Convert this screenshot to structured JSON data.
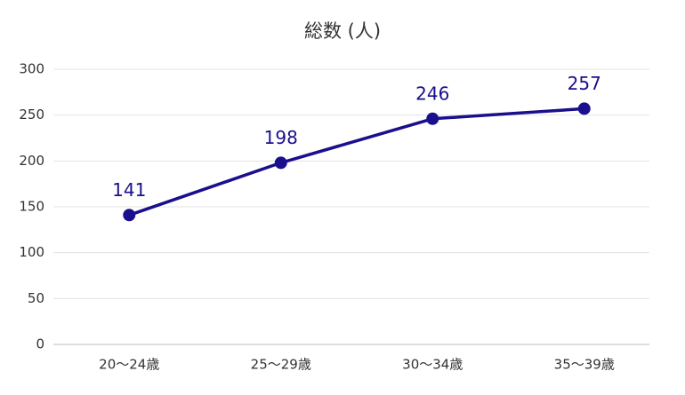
{
  "chart_data": {
    "type": "line",
    "title": "総数 (人)",
    "categories": [
      "20〜24歳",
      "25〜29歳",
      "30〜34歳",
      "35〜39歳"
    ],
    "values": [
      141,
      198,
      246,
      257
    ],
    "color": "#1a0f8c",
    "ylim": [
      0,
      300
    ],
    "yticks": [
      0,
      50,
      100,
      150,
      200,
      250,
      300
    ],
    "grid": true
  }
}
